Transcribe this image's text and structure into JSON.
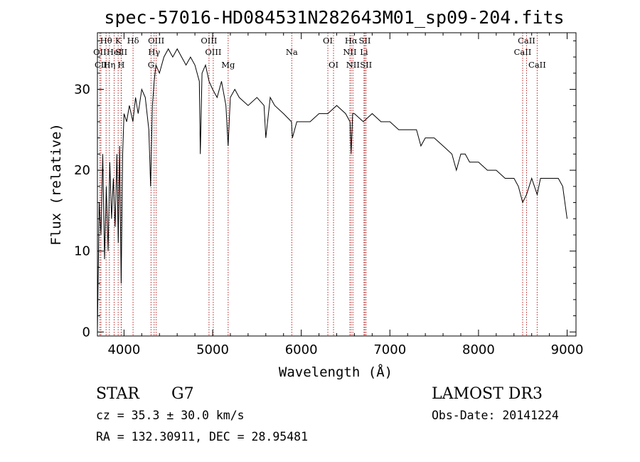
{
  "chart_data": {
    "type": "line",
    "title": "spec-57016-HD084531N282643M01_sp09-204.fits",
    "xlabel": "Wavelength (Å)",
    "ylabel": "Flux (relative)",
    "xlim": [
      3700,
      9100
    ],
    "ylim": [
      -0.5,
      37
    ],
    "xticks": [
      4000,
      5000,
      6000,
      7000,
      8000,
      9000
    ],
    "yticks": [
      0,
      10,
      20,
      30
    ],
    "grid": false,
    "series": [
      {
        "color": "#000000",
        "x": [
          3700,
          3720,
          3740,
          3760,
          3780,
          3800,
          3820,
          3840,
          3860,
          3880,
          3900,
          3920,
          3935,
          3950,
          3968,
          3985,
          4000,
          4030,
          4060,
          4100,
          4130,
          4160,
          4200,
          4240,
          4280,
          4300,
          4320,
          4340,
          4360,
          4400,
          4450,
          4500,
          4550,
          4600,
          4650,
          4700,
          4750,
          4800,
          4850,
          4861,
          4880,
          4920,
          4960,
          5000,
          5050,
          5100,
          5150,
          5175,
          5200,
          5250,
          5300,
          5400,
          5500,
          5580,
          5600,
          5650,
          5700,
          5800,
          5890,
          5900,
          5950,
          6000,
          6100,
          6200,
          6300,
          6400,
          6500,
          6550,
          6563,
          6580,
          6600,
          6700,
          6800,
          6900,
          7000,
          7100,
          7200,
          7300,
          7350,
          7400,
          7500,
          7600,
          7700,
          7750,
          7800,
          7850,
          7900,
          8000,
          8100,
          8200,
          8300,
          8400,
          8450,
          8498,
          8542,
          8600,
          8662,
          8700,
          8800,
          8900,
          8950,
          9000
        ],
        "y": [
          0,
          16,
          12,
          22,
          9,
          18,
          10,
          21,
          14,
          19,
          13,
          22,
          11,
          23,
          6,
          22,
          27,
          26,
          28,
          26,
          29,
          27,
          30,
          29,
          25,
          18,
          28,
          31,
          33,
          32,
          34,
          35,
          34,
          35,
          34,
          33,
          34,
          33,
          31,
          22,
          32,
          33,
          31,
          30,
          29,
          31,
          28,
          23,
          29,
          30,
          29,
          28,
          29,
          28,
          24,
          29,
          28,
          27,
          26,
          24,
          26,
          26,
          26,
          27,
          27,
          28,
          27,
          26,
          22,
          27,
          27,
          26,
          27,
          26,
          26,
          25,
          25,
          25,
          23,
          24,
          24,
          23,
          22,
          20,
          22,
          22,
          21,
          21,
          20,
          20,
          19,
          19,
          18,
          16,
          17,
          19,
          17,
          19,
          19,
          19,
          18,
          14
        ]
      }
    ],
    "spectral_lines": [
      {
        "label": "Hθ",
        "wavelength": 3798,
        "row": 1
      },
      {
        "label": "OII",
        "wavelength": 3727,
        "row": 2
      },
      {
        "label": "CII",
        "wavelength": 3740,
        "row": 3
      },
      {
        "label": "Hη",
        "wavelength": 3835,
        "row": 3
      },
      {
        "label": "HeI",
        "wavelength": 3889,
        "row": 2
      },
      {
        "label": "K",
        "wavelength": 3934,
        "row": 1
      },
      {
        "label": "SII",
        "wavelength": 3970,
        "row": 2
      },
      {
        "label": "H",
        "wavelength": 3968,
        "row": 3
      },
      {
        "label": "Hδ",
        "wavelength": 4102,
        "row": 1
      },
      {
        "label": "OIII",
        "wavelength": 4363,
        "row": 1
      },
      {
        "label": "Hγ",
        "wavelength": 4340,
        "row": 2
      },
      {
        "label": "G",
        "wavelength": 4305,
        "row": 3
      },
      {
        "label": "OIII",
        "wavelength": 4959,
        "row": 1
      },
      {
        "label": "OIII",
        "wavelength": 5007,
        "row": 2
      },
      {
        "label": "Mg",
        "wavelength": 5175,
        "row": 3
      },
      {
        "label": "Na",
        "wavelength": 5893,
        "row": 2
      },
      {
        "label": "OI",
        "wavelength": 6300,
        "row": 1
      },
      {
        "label": "OI",
        "wavelength": 6364,
        "row": 3
      },
      {
        "label": "Hα",
        "wavelength": 6563,
        "row": 1
      },
      {
        "label": "NII",
        "wavelength": 6548,
        "row": 2
      },
      {
        "label": "NII",
        "wavelength": 6583,
        "row": 3
      },
      {
        "label": "SII",
        "wavelength": 6717,
        "row": 1
      },
      {
        "label": "Li",
        "wavelength": 6708,
        "row": 2
      },
      {
        "label": "SII",
        "wavelength": 6731,
        "row": 3
      },
      {
        "label": "CaII",
        "wavelength": 8542,
        "row": 1
      },
      {
        "label": "CaII",
        "wavelength": 8498,
        "row": 2
      },
      {
        "label": "CaII",
        "wavelength": 8662,
        "row": 3
      }
    ]
  },
  "info": {
    "class_label": "STAR",
    "subclass": "G7",
    "survey": "LAMOST DR3",
    "cz": "cz = 35.3 ± 30.0 km/s",
    "obs_date": "Obs-Date: 20141224",
    "coords": "RA = 132.30911, DEC =  28.95481"
  },
  "colors": {
    "line_marker": "#b22222",
    "spectrum": "#000000"
  }
}
